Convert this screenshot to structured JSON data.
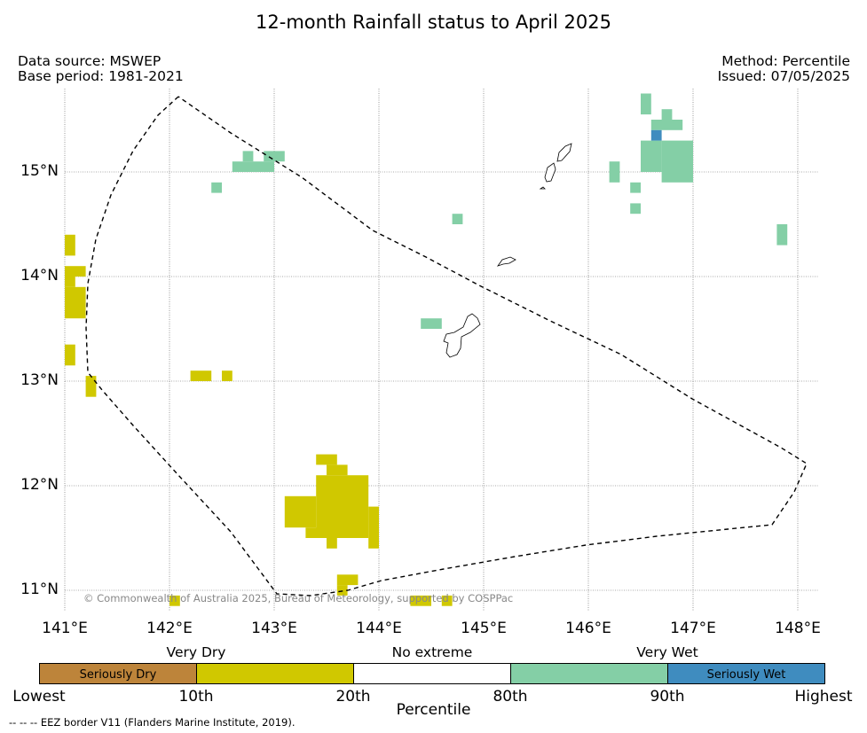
{
  "title": "12-month Rainfall status to April 2025",
  "data_source": "Data source: MSWEP",
  "base_period": "Base period: 1981-2021",
  "method": "Method: Percentile",
  "issued": "Issued: 07/05/2025",
  "copyright": "© Commonwealth of Australia 2025, Bureau of Meteorology, supported by COSPPac",
  "footnote": "--  --  -- EEZ border V11 (Flanders Marine Institute, 2019).",
  "lat_labels": [
    {
      "value": 15,
      "text": "15°N"
    },
    {
      "value": 14,
      "text": "14°N"
    },
    {
      "value": 13,
      "text": "13°N"
    },
    {
      "value": 12,
      "text": "12°N"
    },
    {
      "value": 11,
      "text": "11°N"
    }
  ],
  "lon_labels": [
    {
      "value": 141,
      "text": "141°E"
    },
    {
      "value": 142,
      "text": "142°E"
    },
    {
      "value": 143,
      "text": "143°E"
    },
    {
      "value": 144,
      "text": "144°E"
    },
    {
      "value": 145,
      "text": "145°E"
    },
    {
      "value": 146,
      "text": "146°E"
    },
    {
      "value": 147,
      "text": "147°E"
    },
    {
      "value": 148,
      "text": "148°E"
    }
  ],
  "legend": {
    "segments": [
      {
        "label": "Seriously Dry",
        "color": "#bd843a"
      },
      {
        "label": "",
        "color": "#d0c800"
      },
      {
        "label": "",
        "color": "#ffffff"
      },
      {
        "label": "",
        "color": "#84cfa6"
      },
      {
        "label": "Seriously Wet",
        "color": "#3f8cbf"
      }
    ],
    "categories": [
      "Very Dry",
      "No extreme",
      "Very Wet"
    ],
    "ticks": [
      "Lowest",
      "10th",
      "20th",
      "80th",
      "90th",
      "Highest"
    ],
    "axis_label": "Percentile"
  },
  "colors": {
    "very_dry": "#d0c800",
    "very_wet": "#84cfa6",
    "seriously_wet": "#3f8cbf"
  },
  "cells": {
    "very_dry": [
      [
        141.0,
        14.2,
        0.1,
        0.2
      ],
      [
        141.0,
        14.0,
        0.2,
        0.1
      ],
      [
        141.0,
        13.9,
        0.1,
        0.1
      ],
      [
        141.0,
        13.6,
        0.2,
        0.3
      ],
      [
        141.0,
        13.15,
        0.1,
        0.2
      ],
      [
        141.2,
        12.85,
        0.1,
        0.2
      ],
      [
        142.2,
        13.0,
        0.2,
        0.1
      ],
      [
        142.5,
        13.0,
        0.1,
        0.1
      ],
      [
        143.4,
        12.2,
        0.2,
        0.1
      ],
      [
        143.5,
        12.1,
        0.2,
        0.1
      ],
      [
        143.4,
        11.5,
        0.5,
        0.6
      ],
      [
        143.1,
        11.6,
        0.3,
        0.3
      ],
      [
        143.3,
        11.5,
        0.2,
        0.1
      ],
      [
        143.9,
        11.4,
        0.1,
        0.4
      ],
      [
        143.5,
        11.4,
        0.1,
        0.1
      ],
      [
        143.6,
        11.05,
        0.2,
        0.1
      ],
      [
        143.6,
        10.95,
        0.1,
        0.1
      ],
      [
        142.0,
        10.85,
        0.1,
        0.1
      ],
      [
        144.3,
        10.85,
        0.2,
        0.1
      ],
      [
        144.6,
        10.85,
        0.1,
        0.1
      ]
    ],
    "very_wet": [
      [
        142.6,
        15.0,
        0.4,
        0.1
      ],
      [
        142.7,
        15.1,
        0.1,
        0.1
      ],
      [
        142.9,
        15.1,
        0.2,
        0.1
      ],
      [
        142.4,
        14.8,
        0.1,
        0.1
      ],
      [
        144.7,
        14.5,
        0.1,
        0.1
      ],
      [
        144.4,
        13.5,
        0.2,
        0.1
      ],
      [
        146.5,
        15.55,
        0.1,
        0.2
      ],
      [
        146.6,
        15.4,
        0.3,
        0.1
      ],
      [
        146.7,
        15.5,
        0.1,
        0.1
      ],
      [
        146.5,
        15.0,
        0.2,
        0.3
      ],
      [
        146.7,
        14.9,
        0.3,
        0.4
      ],
      [
        146.2,
        14.9,
        0.1,
        0.2
      ],
      [
        146.4,
        14.8,
        0.1,
        0.1
      ],
      [
        146.4,
        14.6,
        0.1,
        0.1
      ],
      [
        147.8,
        14.3,
        0.1,
        0.2
      ]
    ],
    "seriously_wet": [
      [
        146.6,
        15.3,
        0.1,
        0.1
      ]
    ]
  }
}
